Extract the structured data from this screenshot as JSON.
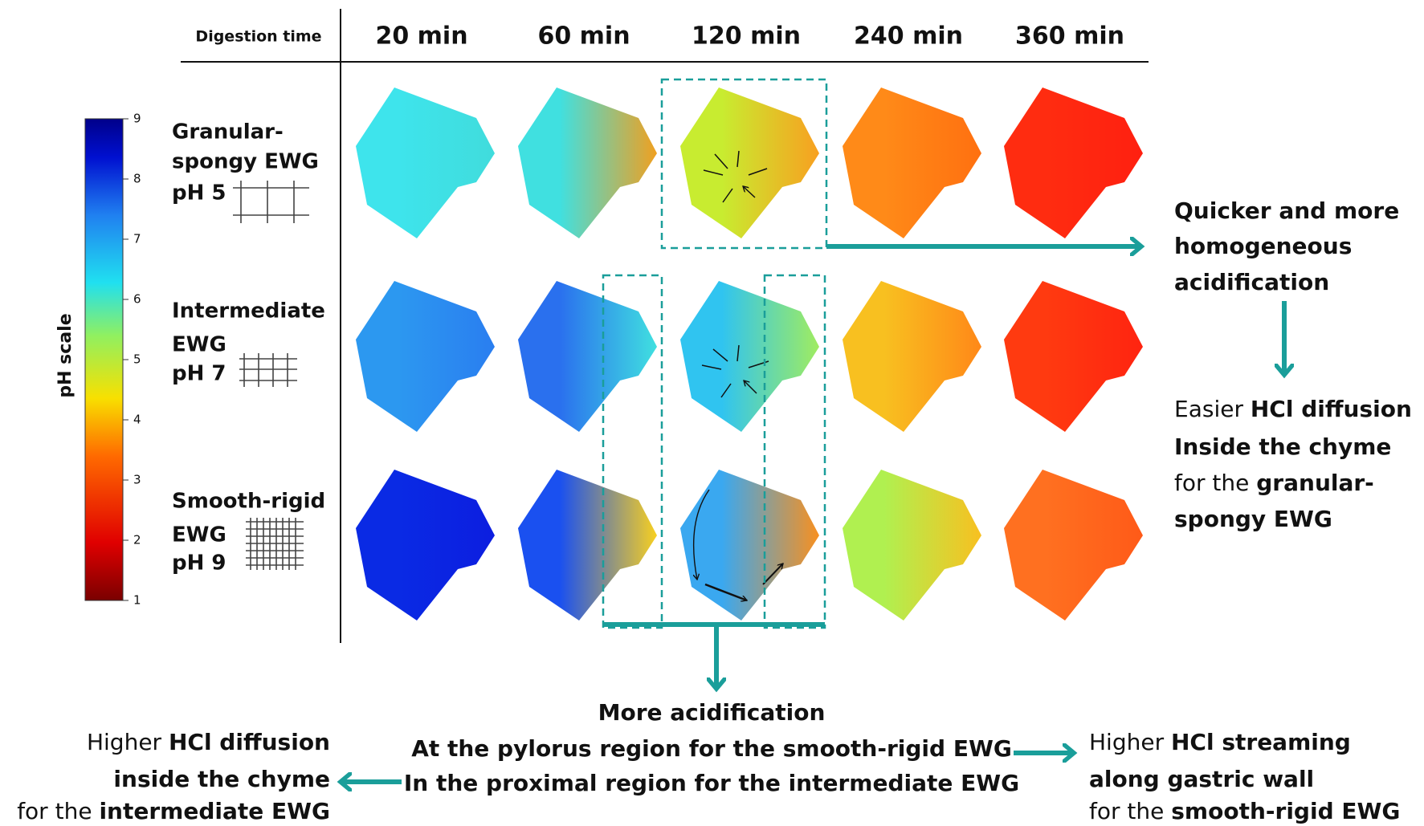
{
  "header": {
    "first": "Digestion time",
    "columns": [
      "20 min",
      "60 min",
      "120 min",
      "240 min",
      "360 min"
    ]
  },
  "colorbar": {
    "label": "pH scale",
    "range": [
      1,
      9
    ],
    "ticks": [
      1,
      2,
      3,
      4,
      5,
      6,
      7,
      8,
      9
    ]
  },
  "rows": [
    {
      "lines": [
        "Granular-",
        "spongy EWG",
        "pH 5"
      ]
    },
    {
      "lines": [
        "Intermediate",
        "EWG",
        "pH 7"
      ]
    },
    {
      "lines": [
        "Smooth-rigid",
        "EWG",
        "pH 9"
      ]
    }
  ],
  "annotations": {
    "quicker": [
      "Quicker and more",
      "homogeneous",
      "acidification"
    ],
    "easier": [
      [
        "Easier ",
        "HCl diffusion"
      ],
      [
        "Inside the chyme"
      ],
      [
        "for the ",
        "granular-"
      ],
      [
        "spongy EWG"
      ]
    ],
    "more": [
      "More acidification",
      "At the pylorus region for the smooth-rigid EWG",
      "In the proximal region for the intermediate EWG"
    ],
    "left": [
      [
        "Higher ",
        "HCl diffusion"
      ],
      [
        "inside the chyme"
      ],
      [
        "for the ",
        "intermediate EWG"
      ]
    ],
    "right": [
      [
        "Higher ",
        "HCl streaming"
      ],
      [
        "along gastric wall"
      ],
      [
        "for the ",
        "smooth-rigid EWG"
      ]
    ]
  }
}
